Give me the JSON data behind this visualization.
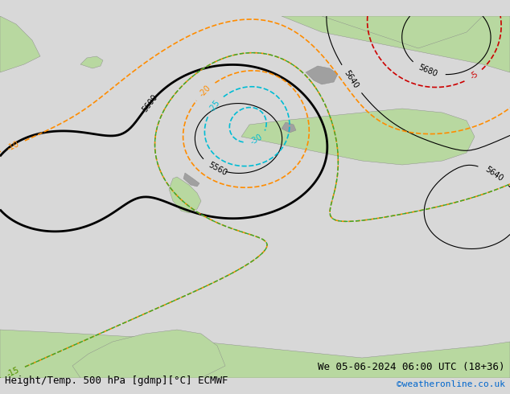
{
  "title_left": "Height/Temp. 500 hPa [gdmp][°C] ECMWF",
  "title_right": "We 05-06-2024 06:00 UTC (18+36)",
  "credit": "©weatheronline.co.uk",
  "bg_color": "#e8e8e8",
  "land_color_light": "#c8e6c0",
  "land_color_dark": "#a8c8a0",
  "sea_color": "#e0e0e0",
  "height_contour_color": "#000000",
  "height_contour_thick_color": "#000000",
  "temp_warm_color": "#ff8c00",
  "temp_cold_color": "#00bcd4",
  "temp_green_color": "#66bb6a",
  "title_fontsize": 9,
  "credit_fontsize": 8,
  "label_fontsize": 7
}
